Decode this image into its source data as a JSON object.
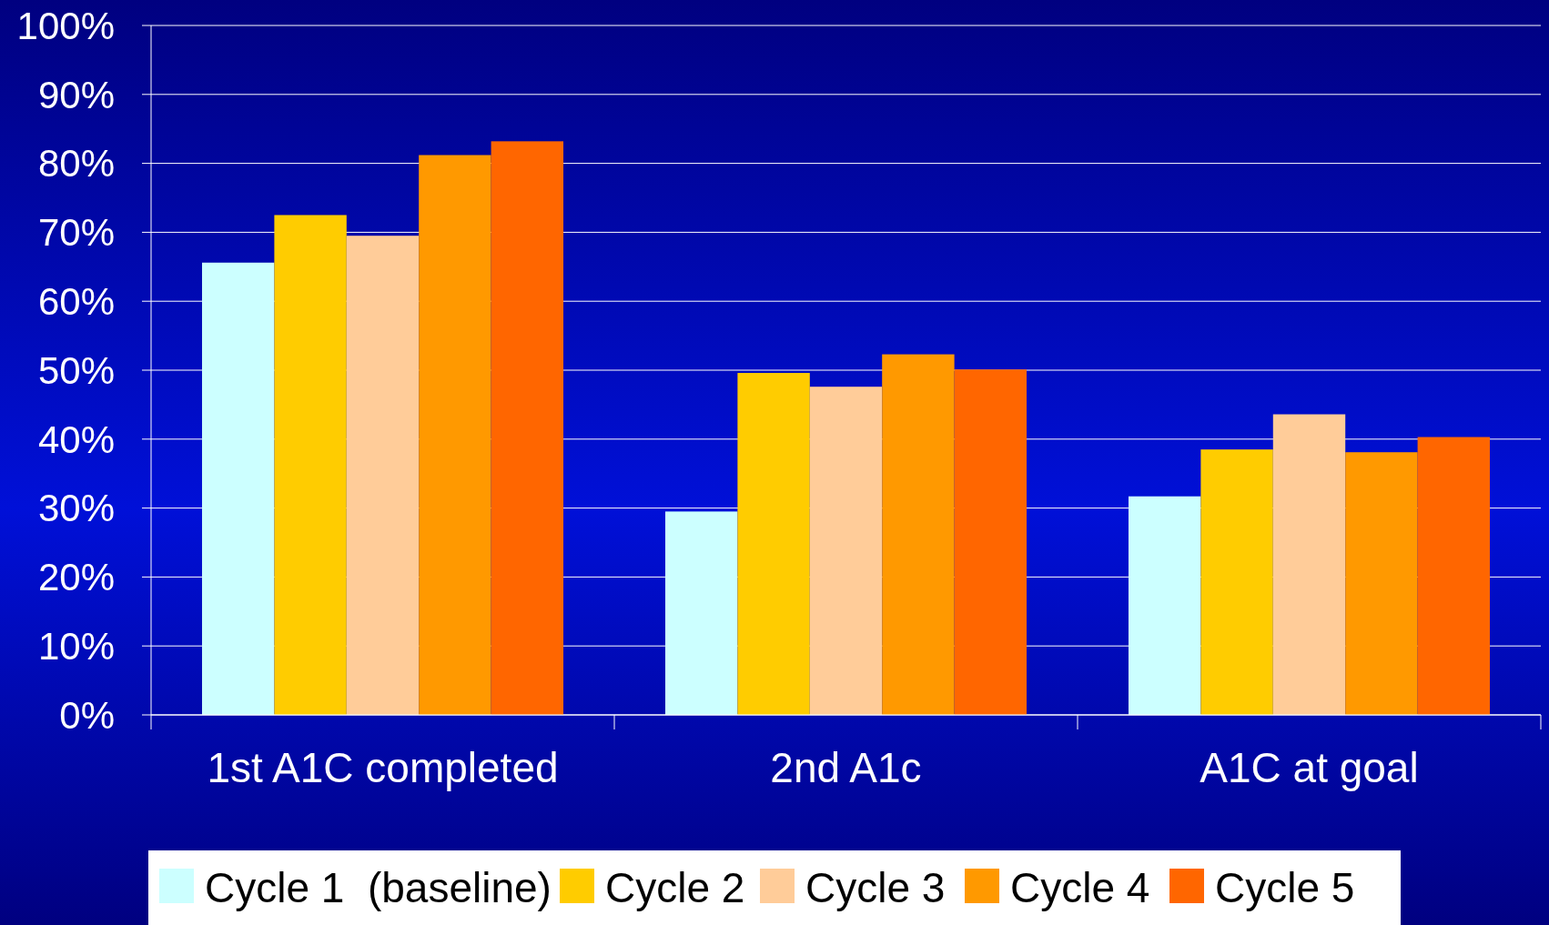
{
  "chart_data": {
    "type": "bar",
    "categories": [
      "1st A1C completed",
      "2nd A1c",
      "A1C at goal"
    ],
    "series": [
      {
        "name": "Cycle 1  (baseline)",
        "color": "#ccffff",
        "values": [
          65.6,
          29.5,
          31.7
        ]
      },
      {
        "name": "Cycle 2",
        "color": "#ffcc00",
        "values": [
          72.5,
          49.6,
          38.5
        ]
      },
      {
        "name": "Cycle 3",
        "color": "#ffcc99",
        "values": [
          69.5,
          47.6,
          43.6
        ]
      },
      {
        "name": "Cycle 4",
        "color": "#ff9900",
        "values": [
          81.2,
          52.3,
          38.1
        ]
      },
      {
        "name": "Cycle 5",
        "color": "#ff6600",
        "values": [
          83.2,
          50.1,
          40.3
        ]
      }
    ],
    "ylim": [
      0,
      100
    ],
    "yticks": [
      {
        "value": 0,
        "label": "0%"
      },
      {
        "value": 10,
        "label": "10%"
      },
      {
        "value": 20,
        "label": "20%"
      },
      {
        "value": 30,
        "label": "30%"
      },
      {
        "value": 40,
        "label": "40%"
      },
      {
        "value": 50,
        "label": "50%"
      },
      {
        "value": 60,
        "label": "60%"
      },
      {
        "value": 70,
        "label": "70%"
      },
      {
        "value": 80,
        "label": "80%"
      },
      {
        "value": 90,
        "label": "90%"
      },
      {
        "value": 100,
        "label": "100%"
      }
    ],
    "grid": "y",
    "legend": "bottom"
  }
}
